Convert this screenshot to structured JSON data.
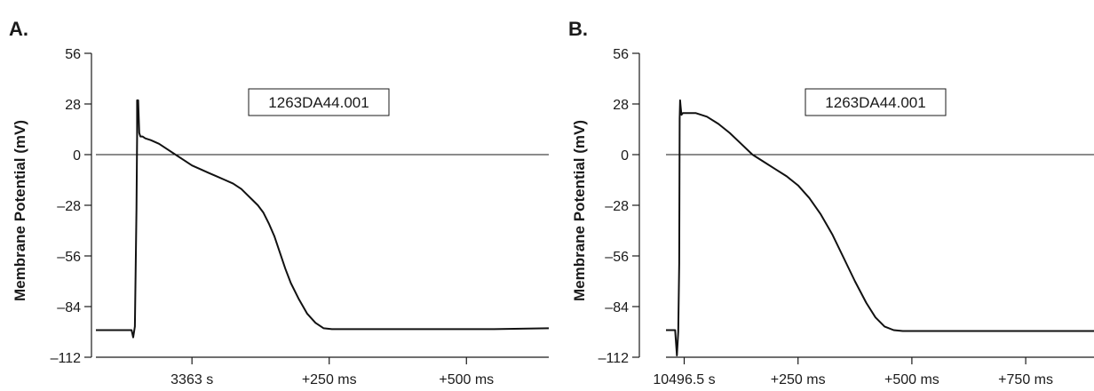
{
  "chart_data": [
    {
      "type": "line",
      "panel_label": "A.",
      "ylabel": "Membrane Potential (mV)",
      "yticks": [
        56,
        28,
        0,
        -28,
        -56,
        -84,
        -112
      ],
      "ytick_labels": [
        "56",
        "28",
        "0",
        "–28",
        "–56",
        "–84",
        "–112"
      ],
      "ylim": [
        -112,
        56
      ],
      "xlim_ms": [
        -175,
        650
      ],
      "xticks_ms": [
        0,
        250,
        500
      ],
      "xtick_labels": [
        "3363 s",
        "+250 ms",
        "+500 ms"
      ],
      "annotation": "1263DA44.001",
      "zero_line": true,
      "series": [
        {
          "x": [
            -175,
            -110,
            -107,
            -104,
            -101,
            -100,
            -100,
            -98,
            -96,
            -94,
            -90,
            -85,
            -75,
            -60,
            -45,
            -30,
            -15,
            0,
            15,
            30,
            45,
            60,
            75,
            90,
            100,
            110,
            120,
            130,
            140,
            150,
            160,
            170,
            180,
            195,
            210,
            225,
            240,
            255,
            270,
            285,
            300,
            315,
            330,
            350,
            380,
            420,
            480,
            550,
            650
          ],
          "y": [
            -97,
            -97,
            -101,
            -95,
            -30,
            10,
            30,
            30,
            12,
            10,
            10,
            9,
            8,
            6,
            3,
            0,
            -3,
            -6,
            -8,
            -10,
            -12,
            -14,
            -16,
            -19,
            -22,
            -25,
            -28,
            -32,
            -38,
            -45,
            -54,
            -63,
            -71,
            -80,
            -88,
            -93,
            -96,
            -96.5,
            -96.5,
            -96.5,
            -96.5,
            -96.5,
            -96.5,
            -96.5,
            -96.5,
            -96.5,
            -96.5,
            -96.5,
            -96
          ]
        }
      ]
    },
    {
      "type": "line",
      "panel_label": "B.",
      "ylabel": "Membrane Potential (mV)",
      "yticks": [
        56,
        28,
        0,
        -28,
        -56,
        -84,
        -112
      ],
      "ytick_labels": [
        "56",
        "28",
        "0",
        "–28",
        "–56",
        "–84",
        "–112"
      ],
      "ylim": [
        -112,
        56
      ],
      "xlim_ms": [
        -40,
        900
      ],
      "xticks_ms": [
        0,
        250,
        500,
        750
      ],
      "xtick_labels": [
        "10496.5 s",
        "+250 ms",
        "+500 ms",
        "+750 ms"
      ],
      "annotation": "1263DA44.001",
      "zero_line": true,
      "series": [
        {
          "x": [
            -40,
            -20,
            -16,
            -13,
            -11,
            -10,
            -9,
            -8,
            -6,
            -3,
            0,
            10,
            25,
            50,
            75,
            100,
            125,
            150,
            175,
            200,
            225,
            250,
            275,
            300,
            325,
            350,
            375,
            400,
            420,
            440,
            460,
            480,
            500,
            530,
            560,
            600,
            650,
            700,
            800,
            900
          ],
          "y": [
            -97,
            -97,
            -111,
            -98,
            -60,
            20,
            30,
            27,
            22,
            23,
            23,
            23,
            23,
            21,
            17,
            12,
            6,
            0,
            -4,
            -8,
            -12,
            -17,
            -24,
            -33,
            -44,
            -57,
            -70,
            -82,
            -90,
            -95,
            -97,
            -97.5,
            -97.5,
            -97.5,
            -97.5,
            -97.5,
            -97.5,
            -97.5,
            -97.5,
            -97.5
          ]
        }
      ]
    }
  ]
}
